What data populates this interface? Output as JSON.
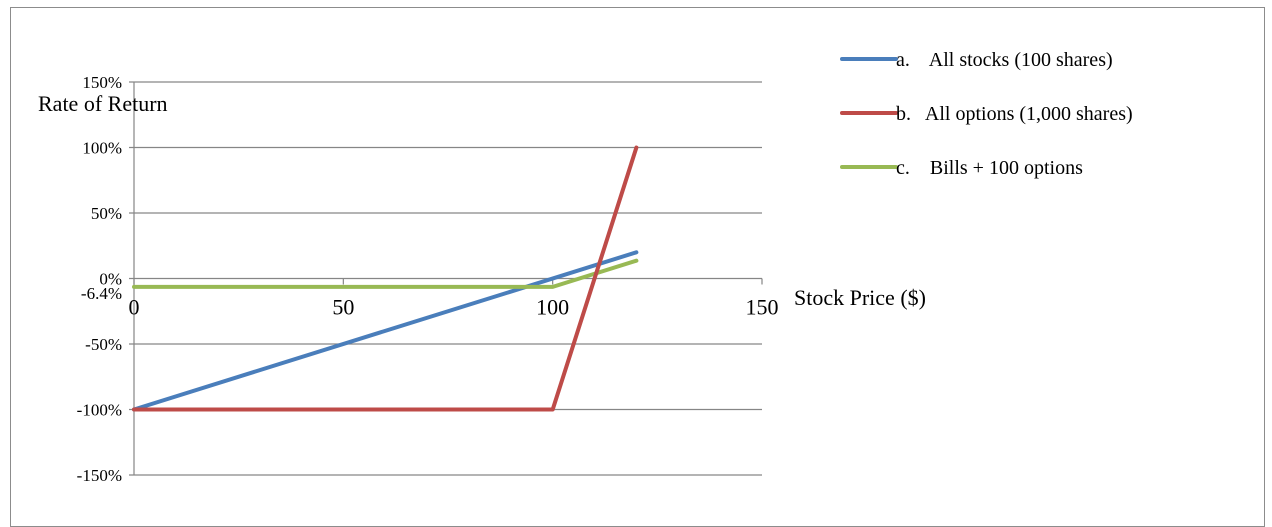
{
  "chart_data": {
    "type": "line",
    "ylabel": "Rate of Return",
    "xlabel": "Stock Price ($)",
    "xlim": [
      0,
      150
    ],
    "ylim": [
      -150,
      150
    ],
    "x_ticks": [
      "0",
      "50",
      "100",
      "150"
    ],
    "x_tick_values": [
      0,
      50,
      100,
      150
    ],
    "y_ticks": [
      "150%",
      "100%",
      "50%",
      "0%",
      "-50%",
      "-100%",
      "-150%"
    ],
    "y_tick_values": [
      150,
      100,
      50,
      0,
      -50,
      -100,
      -150
    ],
    "extra_y_tick": {
      "label": "-6.4%",
      "value": -6.4
    },
    "grid": true,
    "legend_position": "top-right",
    "series": [
      {
        "name": "a.    All stocks (100 shares)",
        "color": "#4a7ebb",
        "x": [
          0,
          120
        ],
        "y": [
          -100,
          20
        ]
      },
      {
        "name": "b.   All options (1,000 shares)",
        "color": "#be4b48",
        "x": [
          0,
          100,
          120
        ],
        "y": [
          -100,
          -100,
          100
        ]
      },
      {
        "name": "c.    Bills + 100 options",
        "color": "#98b954",
        "x": [
          0,
          100,
          120
        ],
        "y": [
          -6.4,
          -6.4,
          13.6
        ]
      }
    ]
  }
}
